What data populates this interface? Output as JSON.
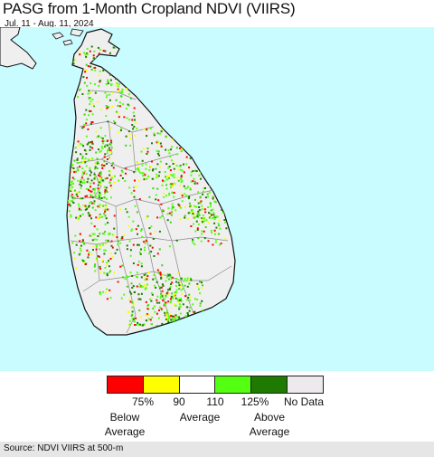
{
  "header": {
    "title": "PASG from 1-Month Cropland NDVI (VIIRS)",
    "date_range": "Jul. 11 - Aug. 11, 2024"
  },
  "map": {
    "ocean_color": "#c8fcff",
    "land_color": "#efefef",
    "boundary_color": "#888888"
  },
  "legend": {
    "swatches": [
      {
        "color": "#ff0000",
        "meaning": "below 75%"
      },
      {
        "color": "#ffff00",
        "meaning": "75% to 90%"
      },
      {
        "color": "#ffffff",
        "meaning": "90 to 110"
      },
      {
        "color": "#55ff11",
        "meaning": "110 to 125%"
      },
      {
        "color": "#1e7a00",
        "meaning": "above 125%"
      },
      {
        "color": "#ede9ed",
        "meaning": "No Data"
      }
    ],
    "ticks": [
      "75%",
      "90",
      "110",
      "125%",
      "No Data"
    ],
    "below_label": "Below\nAverage",
    "avg_label": "Average",
    "above_label": "Above\nAverage"
  },
  "footer": {
    "source": "Source: NDVI VIIRS at 500-m"
  }
}
